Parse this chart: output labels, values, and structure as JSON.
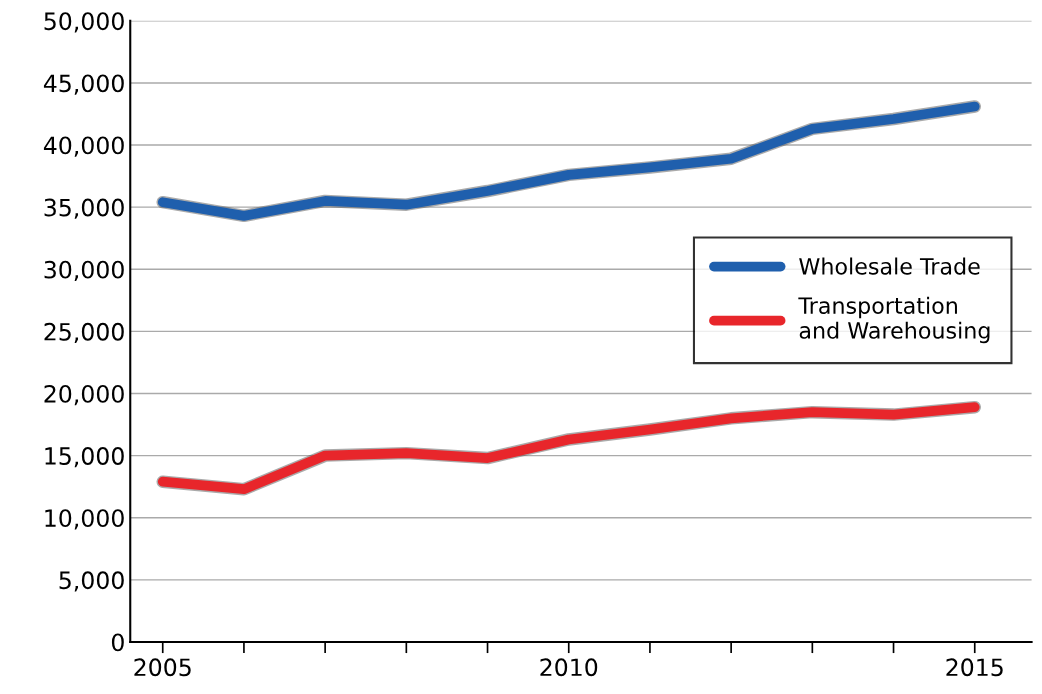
{
  "chart_data": {
    "type": "line",
    "x": [
      2005,
      2006,
      2007,
      2008,
      2009,
      2010,
      2011,
      2012,
      2013,
      2014,
      2015
    ],
    "series": [
      {
        "name": "Wholesale Trade",
        "color": "#1f5fad",
        "values": [
          35400,
          34300,
          35500,
          35200,
          36300,
          37600,
          38200,
          38900,
          41300,
          42100,
          43100
        ]
      },
      {
        "name": "Transportation\nand Warehousing",
        "color": "#e8262b",
        "values": [
          12900,
          12300,
          15000,
          15200,
          14800,
          16300,
          17100,
          18000,
          18500,
          18300,
          18900
        ]
      }
    ],
    "xlim": [
      2004.6,
      2015.7
    ],
    "xticks": [
      2005,
      {
        "value": 2006,
        "label": null
      },
      {
        "value": 2007,
        "label": null
      },
      {
        "value": 2008,
        "label": null
      },
      {
        "value": 2009,
        "label": null
      },
      2010,
      {
        "value": 2011,
        "label": null
      },
      {
        "value": 2012,
        "label": null
      },
      {
        "value": 2013,
        "label": null
      },
      {
        "value": 2014,
        "label": null
      },
      2015
    ],
    "ylim": [
      0,
      50000
    ],
    "yticks": [
      {
        "value": 0,
        "label": "0"
      },
      {
        "value": 5000,
        "label": "5,000"
      },
      {
        "value": 10000,
        "label": "10,000"
      },
      {
        "value": 15000,
        "label": "15,000"
      },
      {
        "value": 20000,
        "label": "20,000"
      },
      {
        "value": 25000,
        "label": "25,000"
      },
      {
        "value": 30000,
        "label": "30,000"
      },
      {
        "value": 35000,
        "label": "35,000"
      },
      {
        "value": 40000,
        "label": "40,000"
      },
      {
        "value": 45000,
        "label": "45,000"
      },
      {
        "value": 50000,
        "label": "50,000"
      }
    ],
    "grid": "y",
    "legend": "center right",
    "marker": "none",
    "line_style": "solid"
  }
}
